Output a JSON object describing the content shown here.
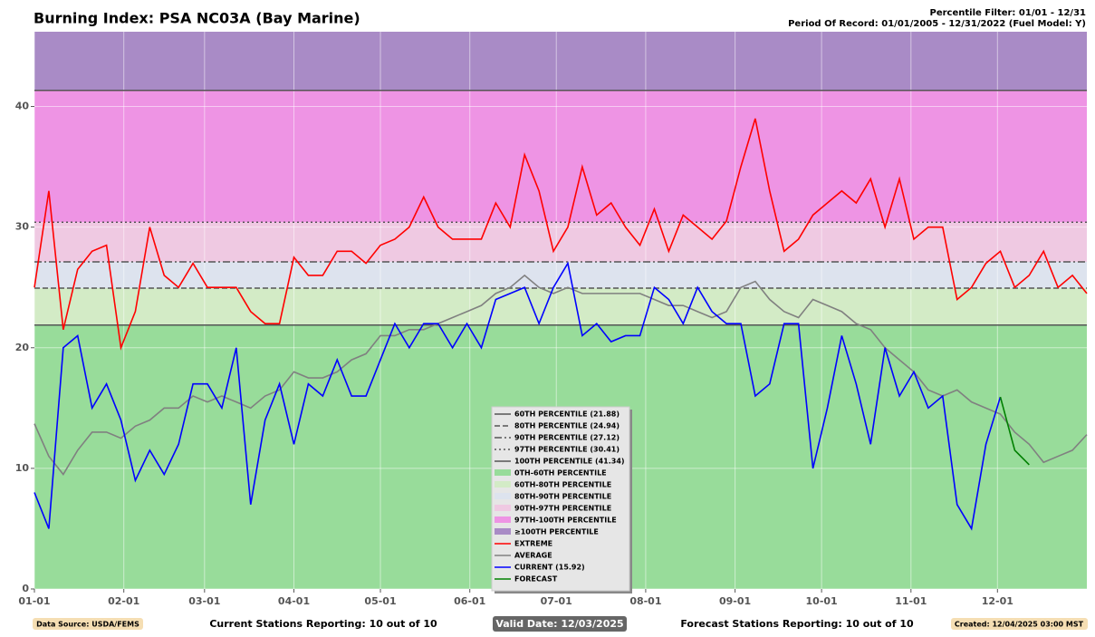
{
  "chart_data": {
    "type": "line",
    "title": "Burning Index: PSA NC03A (Bay Marine)",
    "subtitle_lines": [
      "Percentile Filter: 01/01 - 12/31",
      "Period Of Record: 01/01/2005 - 12/31/2022 (Fuel Model: Y)"
    ],
    "x": [
      0,
      5,
      10,
      15,
      20,
      25,
      30,
      35,
      40,
      45,
      50,
      55,
      60,
      65,
      70,
      75,
      80,
      85,
      90,
      95,
      100,
      105,
      110,
      115,
      120,
      125,
      130,
      135,
      140,
      145,
      150,
      155,
      160,
      165,
      170,
      175,
      180,
      185,
      190,
      195,
      200,
      205,
      210,
      215,
      220,
      225,
      230,
      235,
      240,
      245,
      250,
      255,
      260,
      265,
      270,
      275,
      280,
      285,
      290,
      295,
      300,
      305,
      310,
      315,
      320,
      325,
      330,
      335,
      340,
      345,
      350,
      355,
      360,
      365
    ],
    "xlim": [
      0,
      365
    ],
    "xticks": [
      {
        "value": 0,
        "label": "01-01"
      },
      {
        "value": 31,
        "label": "02-01"
      },
      {
        "value": 59,
        "label": "03-01"
      },
      {
        "value": 90,
        "label": "04-01"
      },
      {
        "value": 120,
        "label": "05-01"
      },
      {
        "value": 151,
        "label": "06-01"
      },
      {
        "value": 181,
        "label": "07-01"
      },
      {
        "value": 212,
        "label": "08-01"
      },
      {
        "value": 243,
        "label": "09-01"
      },
      {
        "value": 273,
        "label": "10-01"
      },
      {
        "value": 304,
        "label": "11-01"
      },
      {
        "value": 334,
        "label": "12-01"
      }
    ],
    "ylim": [
      0,
      46.2
    ],
    "yticks": [
      0,
      10,
      20,
      30,
      40
    ],
    "grid": true,
    "percentiles": [
      {
        "name": "60TH PERCENTILE (21.88)",
        "value": 21.88,
        "dash": "solid"
      },
      {
        "name": "80TH PERCENTILE (24.94)",
        "value": 24.94,
        "dash": "dashed"
      },
      {
        "name": "90TH PERCENTILE (27.12)",
        "value": 27.12,
        "dash": "dashdot"
      },
      {
        "name": "97TH PERCENTILE (30.41)",
        "value": 30.41,
        "dash": "dotted"
      },
      {
        "name": "100TH PERCENTILE (41.34)",
        "value": 41.34,
        "dash": "solid"
      }
    ],
    "percentile_color": "#555555",
    "bands": [
      {
        "name": "0TH-60TH PERCENTILE",
        "color": "#98dc9a"
      },
      {
        "name": "60TH-80TH PERCENTILE",
        "color": "#d3ebc6"
      },
      {
        "name": "80TH-90TH PERCENTILE",
        "color": "#dde3ee"
      },
      {
        "name": "90TH-97TH PERCENTILE",
        "color": "#efc9e2"
      },
      {
        "name": "97TH-100TH PERCENTILE",
        "color": "#ee94e4"
      },
      {
        "name": "≥100TH PERCENTILE",
        "color": "#a98bc6"
      }
    ],
    "series": [
      {
        "name": "EXTREME",
        "color": "#ff0000",
        "values": [
          25,
          33,
          21.5,
          26.5,
          28,
          28.5,
          20,
          23,
          30,
          26,
          25,
          27,
          25,
          25,
          25,
          23,
          22,
          22,
          27.5,
          26,
          26,
          28,
          28,
          27,
          28.5,
          29,
          30,
          32.5,
          30,
          29,
          29,
          29,
          32,
          30,
          36,
          33,
          28,
          30,
          35,
          31,
          32,
          30,
          28.5,
          31.5,
          28,
          31,
          30,
          29,
          30.5,
          35,
          39,
          33,
          28,
          29,
          31,
          32,
          33,
          32,
          34,
          30,
          34,
          29,
          30,
          30,
          24,
          25,
          27,
          28,
          25,
          26,
          28,
          25,
          26,
          24.5
        ]
      },
      {
        "name": "AVERAGE",
        "color": "#808080",
        "values": [
          13.7,
          11,
          9.5,
          11.5,
          13,
          13,
          12.5,
          13.5,
          14,
          15,
          15,
          16,
          15.5,
          16,
          15.5,
          15,
          16,
          16.5,
          18,
          17.5,
          17.5,
          18,
          19,
          19.5,
          21,
          21,
          21.5,
          21.5,
          22,
          22.5,
          23,
          23.5,
          24.5,
          25,
          26,
          25,
          24.5,
          25,
          24.5,
          24.5,
          24.5,
          24.5,
          24.5,
          24,
          23.5,
          23.5,
          23,
          22.5,
          23,
          25,
          25.5,
          24,
          23,
          22.5,
          24,
          23.5,
          23,
          22,
          21.5,
          20,
          19,
          18,
          16.5,
          16,
          16.5,
          15.5,
          15,
          14.5,
          13,
          12,
          10.5,
          11,
          11.5,
          12.8
        ]
      },
      {
        "name": "CURRENT (15.92)",
        "color": "#0000ff",
        "values": [
          8,
          5,
          20,
          21,
          15,
          17,
          14,
          9,
          11.5,
          9.5,
          12,
          17,
          17,
          15,
          20,
          7,
          14,
          17,
          12,
          17,
          16,
          19,
          16,
          16,
          19,
          22,
          20,
          22,
          22,
          20,
          22,
          20,
          24,
          24.5,
          25,
          22,
          25,
          27,
          21,
          22,
          20.5,
          21,
          21,
          25,
          24,
          22,
          25,
          23,
          22,
          22,
          16,
          17,
          22,
          22,
          10,
          15,
          21,
          17,
          12,
          20,
          16,
          18,
          15,
          16,
          7,
          5,
          12,
          15.92,
          null,
          null,
          null,
          null,
          null,
          null
        ]
      },
      {
        "name": "FORECAST",
        "color": "#008000",
        "values": [
          null,
          null,
          null,
          null,
          null,
          null,
          null,
          null,
          null,
          null,
          null,
          null,
          null,
          null,
          null,
          null,
          null,
          null,
          null,
          null,
          null,
          null,
          null,
          null,
          null,
          null,
          null,
          null,
          null,
          null,
          null,
          null,
          null,
          null,
          null,
          null,
          null,
          null,
          null,
          null,
          null,
          null,
          null,
          null,
          null,
          null,
          null,
          null,
          null,
          null,
          null,
          null,
          null,
          null,
          null,
          null,
          null,
          null,
          null,
          null,
          null,
          null,
          null,
          null,
          null,
          null,
          null,
          15.92,
          11.5,
          10.3,
          null,
          null,
          null,
          null
        ]
      }
    ],
    "footer": {
      "source": "Data Source: USDA/FEMS",
      "current_stations": "Current Stations Reporting: 10 out of 10",
      "valid_date": "Valid Date: 12/03/2025",
      "forecast_stations": "Forecast Stations Reporting: 10 out of 10",
      "created": "Created: 12/04/2025 03:00 MST"
    }
  }
}
